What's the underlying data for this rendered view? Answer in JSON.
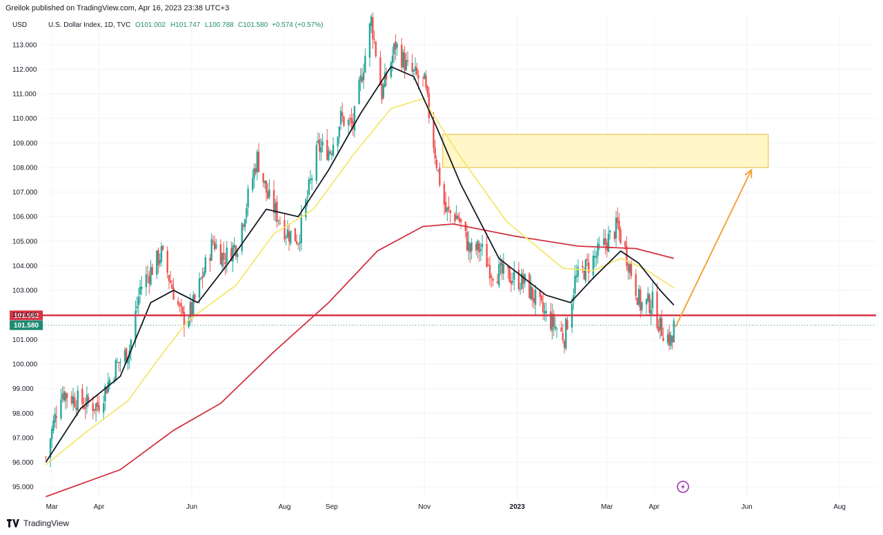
{
  "header": {
    "published_by": "Greilok published on TradingView.com, Apr 16, 2023 23:38 UTC+3"
  },
  "footer": {
    "brand": "TradingView"
  },
  "colors": {
    "bull": "#26a69a",
    "bear": "#ef5350",
    "ma_black": "#131722",
    "ma_yellow": "#f5e66b",
    "ma_red": "#d32f3f",
    "support": "#d63344",
    "last_price": "#1e8c73",
    "zone_fill": "#fff7c8",
    "zone_border": "#e6b83a",
    "arrow": "#f2a43b",
    "grid": "#f0f3fa"
  },
  "chart_data": {
    "type": "candlestick",
    "title": "U.S. Dollar Index, 1D, TVC",
    "ohlc": {
      "open": "O101.002",
      "high": "H101.747",
      "low": "L100.788",
      "close": "C101.580",
      "change": "+0.574 (+0.57%)"
    },
    "currency": "USD",
    "y_ticks": [
      113,
      112,
      111,
      110,
      109,
      108,
      107,
      106,
      105,
      104,
      103,
      102,
      101,
      100,
      99,
      98,
      97,
      96,
      95
    ],
    "y_tick_labels": [
      "113.000",
      "112.000",
      "111.000",
      "110.000",
      "109.000",
      "108.000",
      "107.000",
      "106.000",
      "105.000",
      "104.000",
      "103.000",
      "102.000",
      "101.000",
      "100.000",
      "99.000",
      "98.000",
      "97.000",
      "96.000",
      "95.000"
    ],
    "ylim": [
      94.5,
      114.2
    ],
    "x_ticks": [
      {
        "label": "Mar",
        "date": "2022-03-01"
      },
      {
        "label": "Apr",
        "date": "2022-04-01"
      },
      {
        "label": "Jun",
        "date": "2022-06-01"
      },
      {
        "label": "Aug",
        "date": "2022-08-01"
      },
      {
        "label": "Sep",
        "date": "2022-09-01"
      },
      {
        "label": "Nov",
        "date": "2022-11-01"
      },
      {
        "label": "2023",
        "date": "2023-01-01"
      },
      {
        "label": "Mar",
        "date": "2023-03-01"
      },
      {
        "label": "Apr",
        "date": "2023-04-01"
      },
      {
        "label": "Jun",
        "date": "2023-06-01"
      },
      {
        "label": "Aug",
        "date": "2023-08-01"
      }
    ],
    "xlim": [
      "2022-02-23",
      "2023-08-25"
    ],
    "price_path": [
      [
        "2022-02-25",
        96.2
      ],
      [
        "2022-03-07",
        98.9
      ],
      [
        "2022-03-15",
        98.6
      ],
      [
        "2022-03-22",
        98.4
      ],
      [
        "2022-03-31",
        98.3
      ],
      [
        "2022-04-12",
        99.9
      ],
      [
        "2022-04-21",
        100.6
      ],
      [
        "2022-04-28",
        103.1
      ],
      [
        "2022-05-12",
        104.5
      ],
      [
        "2022-05-26",
        101.8
      ],
      [
        "2022-06-01",
        102.2
      ],
      [
        "2022-06-15",
        105.0
      ],
      [
        "2022-06-22",
        104.3
      ],
      [
        "2022-07-01",
        104.9
      ],
      [
        "2022-07-14",
        108.4
      ],
      [
        "2022-07-21",
        106.8
      ],
      [
        "2022-08-02",
        105.4
      ],
      [
        "2022-08-10",
        105.1
      ],
      [
        "2022-08-23",
        108.8
      ],
      [
        "2022-08-31",
        108.7
      ],
      [
        "2022-09-07",
        110.0
      ],
      [
        "2022-09-15",
        109.7
      ],
      [
        "2022-09-27",
        114.0
      ],
      [
        "2022-10-04",
        111.0
      ],
      [
        "2022-10-13",
        113.0
      ],
      [
        "2022-10-21",
        112.0
      ],
      [
        "2022-11-01",
        111.4
      ],
      [
        "2022-11-10",
        107.8
      ],
      [
        "2022-11-15",
        106.2
      ],
      [
        "2022-11-23",
        106.0
      ],
      [
        "2022-12-01",
        104.6
      ],
      [
        "2022-12-08",
        104.7
      ],
      [
        "2022-12-15",
        103.8
      ],
      [
        "2022-12-30",
        103.5
      ],
      [
        "2023-01-06",
        103.3
      ],
      [
        "2023-01-18",
        102.1
      ],
      [
        "2023-02-01",
        101.1
      ],
      [
        "2023-02-08",
        103.4
      ],
      [
        "2023-02-22",
        104.4
      ],
      [
        "2023-03-08",
        105.6
      ],
      [
        "2023-03-15",
        104.2
      ],
      [
        "2023-03-23",
        102.4
      ],
      [
        "2023-03-31",
        102.5
      ],
      [
        "2023-04-05",
        101.5
      ],
      [
        "2023-04-13",
        100.9
      ],
      [
        "2023-04-14",
        101.58
      ]
    ],
    "ma_black": [
      [
        "2022-02-25",
        96.0
      ],
      [
        "2022-03-20",
        98.2
      ],
      [
        "2022-04-15",
        99.5
      ],
      [
        "2022-05-05",
        102.5
      ],
      [
        "2022-05-20",
        103.0
      ],
      [
        "2022-06-05",
        102.5
      ],
      [
        "2022-06-25",
        104.1
      ],
      [
        "2022-07-20",
        106.3
      ],
      [
        "2022-08-10",
        106.0
      ],
      [
        "2022-08-30",
        107.9
      ],
      [
        "2022-09-20",
        110.2
      ],
      [
        "2022-10-10",
        112.1
      ],
      [
        "2022-10-25",
        111.7
      ],
      [
        "2022-11-10",
        109.5
      ],
      [
        "2022-11-25",
        107.3
      ],
      [
        "2022-12-20",
        104.3
      ],
      [
        "2023-01-20",
        102.8
      ],
      [
        "2023-02-05",
        102.5
      ],
      [
        "2023-02-20",
        103.5
      ],
      [
        "2023-03-10",
        104.6
      ],
      [
        "2023-03-22",
        104.1
      ],
      [
        "2023-04-05",
        103.0
      ],
      [
        "2023-04-14",
        102.4
      ]
    ],
    "ma_yellow": [
      [
        "2022-02-25",
        95.9
      ],
      [
        "2022-03-25",
        97.3
      ],
      [
        "2022-04-20",
        98.5
      ],
      [
        "2022-05-10",
        100.2
      ],
      [
        "2022-05-30",
        101.8
      ],
      [
        "2022-06-30",
        103.2
      ],
      [
        "2022-07-25",
        105.3
      ],
      [
        "2022-08-20",
        106.3
      ],
      [
        "2022-09-15",
        108.5
      ],
      [
        "2022-10-10",
        110.4
      ],
      [
        "2022-10-31",
        110.8
      ],
      [
        "2022-11-25",
        108.4
      ],
      [
        "2022-12-25",
        105.8
      ],
      [
        "2023-01-31",
        103.9
      ],
      [
        "2023-02-20",
        103.8
      ],
      [
        "2023-03-10",
        104.3
      ],
      [
        "2023-03-25",
        103.9
      ],
      [
        "2023-04-14",
        103.1
      ]
    ],
    "ma_red": [
      [
        "2022-02-25",
        94.6
      ],
      [
        "2022-04-15",
        95.7
      ],
      [
        "2022-05-20",
        97.3
      ],
      [
        "2022-06-20",
        98.4
      ],
      [
        "2022-07-25",
        100.5
      ],
      [
        "2022-08-30",
        102.5
      ],
      [
        "2022-10-01",
        104.6
      ],
      [
        "2022-10-31",
        105.6
      ],
      [
        "2022-11-20",
        105.7
      ],
      [
        "2022-12-31",
        105.2
      ],
      [
        "2023-02-10",
        104.8
      ],
      [
        "2023-03-20",
        104.7
      ],
      [
        "2023-04-14",
        104.3
      ]
    ],
    "support_level": 101.982,
    "support_label": "101.982",
    "last_price": 101.58,
    "last_price_label": "101.580",
    "target_zone": {
      "date_start": "2022-11-13",
      "date_end": "2023-06-15",
      "price_low": 108.0,
      "price_high": 109.35
    },
    "projection_arrow": {
      "from": [
        "2023-04-15",
        101.5
      ],
      "to": [
        "2023-06-04",
        107.9
      ]
    },
    "event_marker": {
      "date": "2023-04-20",
      "price": 95.0,
      "icon": "lightning-icon"
    }
  }
}
